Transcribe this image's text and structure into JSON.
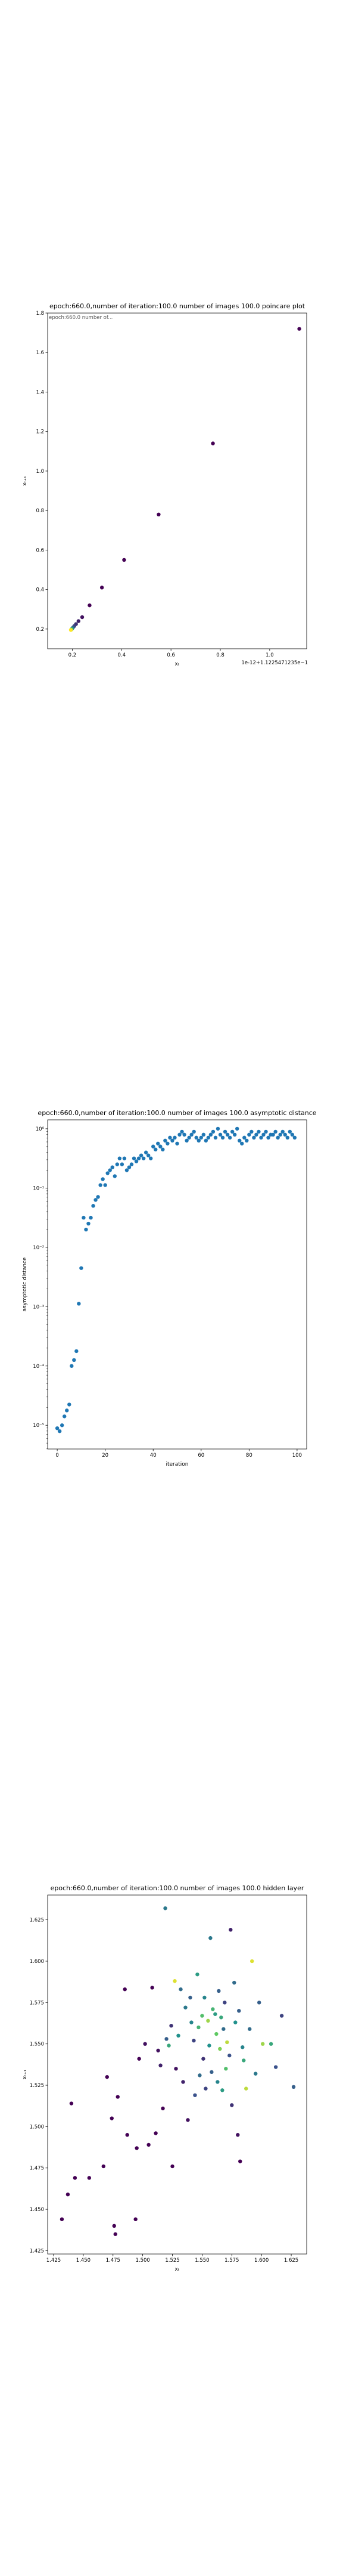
{
  "chart_data": [
    {
      "type": "scatter",
      "title": "epoch:660.0,number of iteration:100.0 number of images 100.0 poincare plot",
      "overlay_text": "epoch:660.0 number of...",
      "xlabel": "xₜ",
      "ylabel": "xₜ₊₁",
      "offset_label": "1e-12+1.1225471235e−1",
      "x_ticks": [
        "0.2",
        "0.4",
        "0.6",
        "0.8",
        "1.0"
      ],
      "y_ticks": [
        "0.2",
        "0.4",
        "0.6",
        "0.8",
        "1.0",
        "1.2",
        "1.4",
        "1.6",
        "1.8"
      ],
      "xlim": [
        0.1,
        1.15
      ],
      "ylim": [
        0.1,
        1.8
      ],
      "colormap": [
        "#440154",
        "#3b528b",
        "#21918c",
        "#5ec962",
        "#fde725"
      ],
      "points": [
        {
          "x": 1.12,
          "y": 1.72,
          "c": 0.0
        },
        {
          "x": 0.77,
          "y": 1.14,
          "c": 0.0
        },
        {
          "x": 0.55,
          "y": 0.78,
          "c": 0.0
        },
        {
          "x": 0.41,
          "y": 0.55,
          "c": 0.0
        },
        {
          "x": 0.32,
          "y": 0.41,
          "c": 0.0
        },
        {
          "x": 0.27,
          "y": 0.32,
          "c": 0.0
        },
        {
          "x": 0.24,
          "y": 0.26,
          "c": 0.05
        },
        {
          "x": 0.225,
          "y": 0.24,
          "c": 0.1
        },
        {
          "x": 0.215,
          "y": 0.225,
          "c": 0.15
        },
        {
          "x": 0.208,
          "y": 0.215,
          "c": 0.2
        },
        {
          "x": 0.203,
          "y": 0.208,
          "c": 0.3
        },
        {
          "x": 0.2,
          "y": 0.203,
          "c": 0.4
        },
        {
          "x": 0.198,
          "y": 0.2,
          "c": 0.55
        },
        {
          "x": 0.196,
          "y": 0.198,
          "c": 0.7
        },
        {
          "x": 0.195,
          "y": 0.196,
          "c": 0.85
        },
        {
          "x": 0.194,
          "y": 0.195,
          "c": 1.0
        }
      ]
    },
    {
      "type": "scatter",
      "title": "epoch:660.0,number of iteration:100.0  number of images 100.0 asymptotic distance",
      "xlabel": "iteration",
      "ylabel": "asymptotic distance",
      "y_scale": "log",
      "x_ticks": [
        "0",
        "20",
        "40",
        "60",
        "80",
        "100"
      ],
      "y_ticks": [
        "10⁻⁵",
        "10⁻⁴",
        "10⁻³",
        "10⁻²",
        "10⁻¹",
        "10⁰"
      ],
      "xlim": [
        -4,
        104
      ],
      "ylim": [
        -5.4,
        0.15
      ],
      "color": "#1f77b4",
      "x": [
        0,
        1,
        2,
        3,
        4,
        5,
        6,
        7,
        8,
        9,
        10,
        11,
        12,
        13,
        14,
        15,
        16,
        17,
        18,
        19,
        20,
        21,
        22,
        23,
        24,
        25,
        26,
        27,
        28,
        29,
        30,
        31,
        32,
        33,
        34,
        35,
        36,
        37,
        38,
        39,
        40,
        41,
        42,
        43,
        44,
        45,
        46,
        47,
        48,
        49,
        50,
        51,
        52,
        53,
        54,
        55,
        56,
        57,
        58,
        59,
        60,
        61,
        62,
        63,
        64,
        65,
        66,
        67,
        68,
        69,
        70,
        71,
        72,
        73,
        74,
        75,
        76,
        77,
        78,
        79,
        80,
        81,
        82,
        83,
        84,
        85,
        86,
        87,
        88,
        89,
        90,
        91,
        92,
        93,
        94,
        95,
        96,
        97,
        98,
        99
      ],
      "log10_y": [
        -5.05,
        -5.1,
        -5.0,
        -4.85,
        -4.75,
        -4.65,
        -4.0,
        -3.9,
        -3.75,
        -2.95,
        -2.35,
        -1.5,
        -1.7,
        -1.6,
        -1.5,
        -1.3,
        -1.2,
        -1.15,
        -0.95,
        -0.85,
        -0.95,
        -0.75,
        -0.7,
        -0.65,
        -0.8,
        -0.6,
        -0.5,
        -0.6,
        -0.5,
        -0.7,
        -0.65,
        -0.6,
        -0.5,
        -0.55,
        -0.5,
        -0.45,
        -0.5,
        -0.4,
        -0.45,
        -0.5,
        -0.3,
        -0.35,
        -0.25,
        -0.3,
        -0.35,
        -0.2,
        -0.25,
        -0.15,
        -0.2,
        -0.15,
        -0.25,
        -0.1,
        -0.05,
        -0.1,
        -0.2,
        -0.15,
        -0.1,
        -0.05,
        -0.15,
        -0.2,
        -0.15,
        -0.1,
        -0.2,
        -0.15,
        -0.1,
        -0.05,
        -0.15,
        0.0,
        -0.1,
        -0.15,
        -0.05,
        -0.1,
        -0.15,
        -0.05,
        -0.1,
        0.0,
        -0.2,
        -0.25,
        -0.15,
        -0.2,
        -0.1,
        -0.05,
        -0.15,
        -0.1,
        -0.05,
        -0.15,
        -0.1,
        -0.05,
        -0.15,
        -0.1,
        -0.1,
        -0.05,
        -0.15,
        -0.1,
        -0.05,
        -0.1,
        -0.15,
        -0.05,
        -0.1,
        -0.15
      ]
    },
    {
      "type": "scatter",
      "title": "epoch:660.0,number of iteration:100.0  number of images 100.0 hidden layer",
      "xlabel": "xₜ",
      "ylabel": "xₜ₊₁",
      "x_ticks": [
        "1.425",
        "1.450",
        "1.475",
        "1.500",
        "1.525",
        "1.550",
        "1.575",
        "1.600",
        "1.625"
      ],
      "y_ticks": [
        "1.425",
        "1.450",
        "1.475",
        "1.500",
        "1.525",
        "1.550",
        "1.575",
        "1.600",
        "1.625"
      ],
      "xlim": [
        1.42,
        1.638
      ],
      "ylim": [
        1.423,
        1.64
      ],
      "colormap": [
        "#440154",
        "#3b528b",
        "#21918c",
        "#5ec962",
        "#fde725"
      ],
      "points": [
        {
          "x": 1.432,
          "y": 1.444,
          "c": 0.0
        },
        {
          "x": 1.437,
          "y": 1.459,
          "c": 0.0
        },
        {
          "x": 1.44,
          "y": 1.514,
          "c": 0.0
        },
        {
          "x": 1.443,
          "y": 1.469,
          "c": 0.0
        },
        {
          "x": 1.455,
          "y": 1.469,
          "c": 0.0
        },
        {
          "x": 1.467,
          "y": 1.476,
          "c": 0.0
        },
        {
          "x": 1.47,
          "y": 1.53,
          "c": 0.0
        },
        {
          "x": 1.474,
          "y": 1.505,
          "c": 0.0
        },
        {
          "x": 1.476,
          "y": 1.44,
          "c": 0.0
        },
        {
          "x": 1.477,
          "y": 1.435,
          "c": 0.0
        },
        {
          "x": 1.479,
          "y": 1.518,
          "c": 0.0
        },
        {
          "x": 1.485,
          "y": 1.583,
          "c": 0.0
        },
        {
          "x": 1.487,
          "y": 1.495,
          "c": 0.0
        },
        {
          "x": 1.494,
          "y": 1.444,
          "c": 0.0
        },
        {
          "x": 1.495,
          "y": 1.487,
          "c": 0.0
        },
        {
          "x": 1.497,
          "y": 1.541,
          "c": 0.0
        },
        {
          "x": 1.502,
          "y": 1.55,
          "c": 0.05
        },
        {
          "x": 1.505,
          "y": 1.489,
          "c": 0.0
        },
        {
          "x": 1.508,
          "y": 1.584,
          "c": 0.0
        },
        {
          "x": 1.511,
          "y": 1.496,
          "c": 0.0
        },
        {
          "x": 1.513,
          "y": 1.546,
          "c": 0.05
        },
        {
          "x": 1.515,
          "y": 1.537,
          "c": 0.1
        },
        {
          "x": 1.517,
          "y": 1.511,
          "c": 0.0
        },
        {
          "x": 1.519,
          "y": 1.632,
          "c": 0.4
        },
        {
          "x": 1.52,
          "y": 1.553,
          "c": 0.3
        },
        {
          "x": 1.522,
          "y": 1.549,
          "c": 0.6
        },
        {
          "x": 1.524,
          "y": 1.561,
          "c": 0.15
        },
        {
          "x": 1.525,
          "y": 1.476,
          "c": 0.0
        },
        {
          "x": 1.527,
          "y": 1.588,
          "c": 0.95
        },
        {
          "x": 1.528,
          "y": 1.535,
          "c": 0.05
        },
        {
          "x": 1.53,
          "y": 1.555,
          "c": 0.5
        },
        {
          "x": 1.532,
          "y": 1.583,
          "c": 0.35
        },
        {
          "x": 1.534,
          "y": 1.527,
          "c": 0.1
        },
        {
          "x": 1.536,
          "y": 1.572,
          "c": 0.4
        },
        {
          "x": 1.538,
          "y": 1.504,
          "c": 0.05
        },
        {
          "x": 1.54,
          "y": 1.578,
          "c": 0.3
        },
        {
          "x": 1.541,
          "y": 1.563,
          "c": 0.45
        },
        {
          "x": 1.543,
          "y": 1.552,
          "c": 0.2
        },
        {
          "x": 1.544,
          "y": 1.519,
          "c": 0.25
        },
        {
          "x": 1.546,
          "y": 1.592,
          "c": 0.55
        },
        {
          "x": 1.547,
          "y": 1.56,
          "c": 0.65
        },
        {
          "x": 1.548,
          "y": 1.531,
          "c": 0.35
        },
        {
          "x": 1.55,
          "y": 1.567,
          "c": 0.7
        },
        {
          "x": 1.551,
          "y": 1.541,
          "c": 0.15
        },
        {
          "x": 1.552,
          "y": 1.578,
          "c": 0.45
        },
        {
          "x": 1.553,
          "y": 1.523,
          "c": 0.2
        },
        {
          "x": 1.555,
          "y": 1.564,
          "c": 0.85
        },
        {
          "x": 1.556,
          "y": 1.549,
          "c": 0.5
        },
        {
          "x": 1.557,
          "y": 1.614,
          "c": 0.4
        },
        {
          "x": 1.558,
          "y": 1.533,
          "c": 0.3
        },
        {
          "x": 1.559,
          "y": 1.571,
          "c": 0.65
        },
        {
          "x": 1.561,
          "y": 1.568,
          "c": 0.55
        },
        {
          "x": 1.562,
          "y": 1.556,
          "c": 0.75
        },
        {
          "x": 1.563,
          "y": 1.527,
          "c": 0.45
        },
        {
          "x": 1.564,
          "y": 1.582,
          "c": 0.3
        },
        {
          "x": 1.565,
          "y": 1.547,
          "c": 0.8
        },
        {
          "x": 1.566,
          "y": 1.566,
          "c": 0.6
        },
        {
          "x": 1.567,
          "y": 1.522,
          "c": 0.55
        },
        {
          "x": 1.568,
          "y": 1.559,
          "c": 0.35
        },
        {
          "x": 1.569,
          "y": 1.575,
          "c": 0.2
        },
        {
          "x": 1.57,
          "y": 1.535,
          "c": 0.7
        },
        {
          "x": 1.571,
          "y": 1.551,
          "c": 0.9
        },
        {
          "x": 1.573,
          "y": 1.543,
          "c": 0.25
        },
        {
          "x": 1.574,
          "y": 1.619,
          "c": 0.1
        },
        {
          "x": 1.575,
          "y": 1.513,
          "c": 0.15
        },
        {
          "x": 1.577,
          "y": 1.587,
          "c": 0.35
        },
        {
          "x": 1.578,
          "y": 1.563,
          "c": 0.5
        },
        {
          "x": 1.58,
          "y": 1.495,
          "c": 0.05
        },
        {
          "x": 1.581,
          "y": 1.57,
          "c": 0.3
        },
        {
          "x": 1.582,
          "y": 1.479,
          "c": 0.0
        },
        {
          "x": 1.584,
          "y": 1.548,
          "c": 0.45
        },
        {
          "x": 1.585,
          "y": 1.54,
          "c": 0.6
        },
        {
          "x": 1.587,
          "y": 1.523,
          "c": 0.9
        },
        {
          "x": 1.59,
          "y": 1.559,
          "c": 0.35
        },
        {
          "x": 1.592,
          "y": 1.6,
          "c": 0.95
        },
        {
          "x": 1.595,
          "y": 1.532,
          "c": 0.4
        },
        {
          "x": 1.598,
          "y": 1.575,
          "c": 0.3
        },
        {
          "x": 1.601,
          "y": 1.55,
          "c": 0.85
        },
        {
          "x": 1.608,
          "y": 1.55,
          "c": 0.6
        },
        {
          "x": 1.612,
          "y": 1.536,
          "c": 0.25
        },
        {
          "x": 1.617,
          "y": 1.567,
          "c": 0.2
        },
        {
          "x": 1.627,
          "y": 1.524,
          "c": 0.3
        }
      ]
    }
  ]
}
